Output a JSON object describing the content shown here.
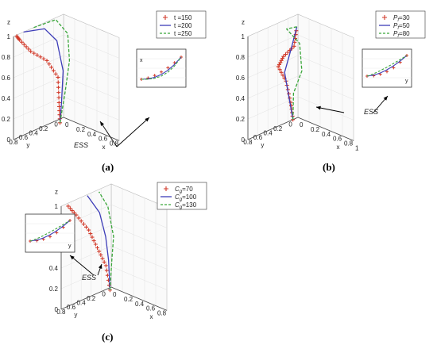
{
  "chart_data": [
    {
      "type": "line",
      "panel_label": "(a)",
      "zlabel": "z",
      "ylabel": "y",
      "xlabel": "x",
      "z_ticks": [
        "0",
        "0.2",
        "0.4",
        "0.6",
        "0.8",
        "1"
      ],
      "y_ticks": [
        "0.8",
        "0.6",
        "0.4",
        "0.2",
        "0"
      ],
      "x_ticks": [
        "0",
        "0.2",
        "0.4",
        "0.6",
        "0.8"
      ],
      "annotation": "ESS",
      "inset_axis_label": "x",
      "legend": [
        "t =150",
        "t =200",
        "t =250"
      ],
      "series": [
        {
          "name": "t =150",
          "style": "plus-markers",
          "color": "#d23a2a",
          "points": [
            [
              0.08,
              0.16,
              0.0
            ],
            [
              0.08,
              0.18,
              0.2
            ],
            [
              0.08,
              0.2,
              0.45
            ],
            [
              0.06,
              0.4,
              0.65
            ],
            [
              0.04,
              0.7,
              0.8
            ],
            [
              0.02,
              0.9,
              0.95
            ],
            [
              0.0,
              0.95,
              1.0
            ]
          ]
        },
        {
          "name": "t =200",
          "style": "solid",
          "color": "#3d3db8",
          "points": [
            [
              0.08,
              0.16,
              0.0
            ],
            [
              0.09,
              0.14,
              0.2
            ],
            [
              0.1,
              0.12,
              0.5
            ],
            [
              0.06,
              0.2,
              0.8
            ],
            [
              0.02,
              0.4,
              0.95
            ],
            [
              0.0,
              0.8,
              1.0
            ]
          ]
        },
        {
          "name": "t =250",
          "style": "dashed",
          "color": "#3aa63a",
          "points": [
            [
              0.08,
              0.16,
              0.0
            ],
            [
              0.12,
              0.1,
              0.3
            ],
            [
              0.16,
              0.06,
              0.6
            ],
            [
              0.12,
              0.05,
              0.85
            ],
            [
              0.04,
              0.2,
              1.0
            ],
            [
              0.0,
              0.6,
              1.0
            ]
          ]
        }
      ]
    },
    {
      "type": "line",
      "panel_label": "(b)",
      "zlabel": "z",
      "ylabel": "y",
      "xlabel": "x",
      "z_ticks": [
        "0",
        "0.2",
        "0.4",
        "0.6",
        "0.8",
        "1"
      ],
      "y_ticks": [
        "0.8",
        "0.6",
        "0.4",
        "0.2",
        "0"
      ],
      "x_ticks": [
        "0",
        "0.2",
        "0.4",
        "0.6",
        "0.8",
        "1"
      ],
      "annotation": "ESS",
      "inset_axis_label": "y",
      "legend": [
        "P_f=30",
        "P_f=50",
        "P_f=80"
      ],
      "series": [
        {
          "name": "P_f=30",
          "style": "plus-markers",
          "color": "#d23a2a",
          "points": [
            [
              0.0,
              0.1,
              0.0
            ],
            [
              0.05,
              0.2,
              0.2
            ],
            [
              0.1,
              0.35,
              0.45
            ],
            [
              0.05,
              0.45,
              0.6
            ],
            [
              0.1,
              0.4,
              0.7
            ],
            [
              0.2,
              0.3,
              0.8
            ],
            [
              0.25,
              0.3,
              1.0
            ]
          ]
        },
        {
          "name": "P_f=50",
          "style": "solid",
          "color": "#3d3db8",
          "points": [
            [
              0.0,
              0.1,
              0.0
            ],
            [
              0.05,
              0.25,
              0.3
            ],
            [
              0.12,
              0.4,
              0.55
            ],
            [
              0.2,
              0.35,
              0.8
            ],
            [
              0.25,
              0.3,
              1.0
            ]
          ]
        },
        {
          "name": "P_f=80",
          "style": "dashed",
          "color": "#3aa63a",
          "points": [
            [
              0.0,
              0.1,
              0.0
            ],
            [
              0.1,
              0.2,
              0.3
            ],
            [
              0.25,
              0.2,
              0.55
            ],
            [
              0.3,
              0.3,
              0.85
            ],
            [
              0.2,
              0.45,
              1.0
            ],
            [
              0.25,
              0.3,
              1.0
            ]
          ]
        }
      ]
    },
    {
      "type": "line",
      "panel_label": "(c)",
      "zlabel": "z",
      "ylabel": "y",
      "xlabel": "x",
      "z_ticks": [
        "0",
        "0.2",
        "0.4",
        "0.6",
        "0.8",
        "1"
      ],
      "y_ticks": [
        "0.8",
        "0.6",
        "0.4",
        "0.2",
        "0"
      ],
      "x_ticks": [
        "0",
        "0.2",
        "0.4",
        "0.6",
        "0.8"
      ],
      "annotation": "ESS",
      "inset_axis_label": "y",
      "legend": [
        "C_g=70",
        "C_g=100",
        "C_g=130"
      ],
      "series": [
        {
          "name": "C_g=70",
          "style": "plus-markers",
          "color": "#d23a2a",
          "points": [
            [
              0.05,
              0.08,
              0.0
            ],
            [
              0.04,
              0.15,
              0.25
            ],
            [
              0.02,
              0.3,
              0.45
            ],
            [
              0.0,
              0.45,
              0.65
            ],
            [
              0.0,
              0.7,
              0.85
            ],
            [
              0.0,
              0.9,
              1.0
            ]
          ]
        },
        {
          "name": "C_g=100",
          "style": "solid",
          "color": "#3d3db8",
          "points": [
            [
              0.05,
              0.08,
              0.0
            ],
            [
              0.06,
              0.12,
              0.3
            ],
            [
              0.08,
              0.2,
              0.55
            ],
            [
              0.06,
              0.3,
              0.8
            ],
            [
              0.02,
              0.5,
              1.0
            ]
          ]
        },
        {
          "name": "C_g=130",
          "style": "dashed",
          "color": "#3aa63a",
          "points": [
            [
              0.05,
              0.08,
              0.0
            ],
            [
              0.1,
              0.1,
              0.3
            ],
            [
              0.15,
              0.12,
              0.55
            ],
            [
              0.12,
              0.2,
              0.85
            ],
            [
              0.05,
              0.3,
              1.0
            ]
          ]
        }
      ]
    }
  ]
}
